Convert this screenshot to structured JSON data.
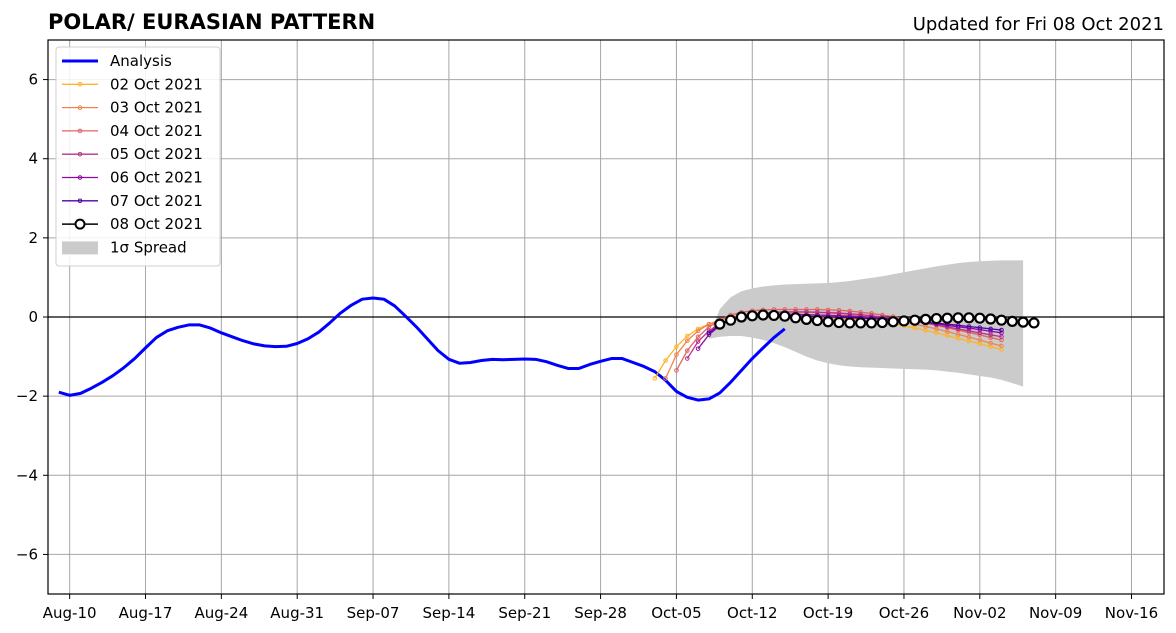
{
  "chart_data": {
    "type": "line",
    "title": "POLAR/ EURASIAN  PATTERN",
    "subtitle": "Updated for Fri 08 Oct 2021",
    "xlabel": "",
    "ylabel": "",
    "x_range": [
      "2021-08-08",
      "2021-11-19"
    ],
    "ylim": [
      -7,
      7
    ],
    "grid": true,
    "legend_position": "top-left",
    "x_ticks": [
      {
        "date": "2021-08-10",
        "label": "Aug-10"
      },
      {
        "date": "2021-08-17",
        "label": "Aug-17"
      },
      {
        "date": "2021-08-24",
        "label": "Aug-24"
      },
      {
        "date": "2021-08-31",
        "label": "Aug-31"
      },
      {
        "date": "2021-09-07",
        "label": "Sep-07"
      },
      {
        "date": "2021-09-14",
        "label": "Sep-14"
      },
      {
        "date": "2021-09-21",
        "label": "Sep-21"
      },
      {
        "date": "2021-09-28",
        "label": "Sep-28"
      },
      {
        "date": "2021-10-05",
        "label": "Oct-05"
      },
      {
        "date": "2021-10-12",
        "label": "Oct-12"
      },
      {
        "date": "2021-10-19",
        "label": "Oct-19"
      },
      {
        "date": "2021-10-26",
        "label": "Oct-26"
      },
      {
        "date": "2021-11-02",
        "label": "Nov-02"
      },
      {
        "date": "2021-11-09",
        "label": "Nov-09"
      },
      {
        "date": "2021-11-16",
        "label": "Nov-16"
      }
    ],
    "y_ticks": [
      {
        "value": 6,
        "label": "6"
      },
      {
        "value": 4,
        "label": "4"
      },
      {
        "value": 2,
        "label": "2"
      },
      {
        "value": 0,
        "label": "0"
      },
      {
        "value": -2,
        "label": "−2"
      },
      {
        "value": -4,
        "label": "−4"
      },
      {
        "value": -6,
        "label": "−6"
      }
    ],
    "zero_line": true,
    "series": [
      {
        "name": "Analysis",
        "color": "#0000ff",
        "style": "thick-line",
        "start_date": "2021-08-09",
        "values": [
          -1.9,
          -1.98,
          -1.93,
          -1.8,
          -1.65,
          -1.48,
          -1.28,
          -1.05,
          -0.78,
          -0.52,
          -0.35,
          -0.26,
          -0.2,
          -0.2,
          -0.28,
          -0.4,
          -0.5,
          -0.6,
          -0.68,
          -0.73,
          -0.75,
          -0.74,
          -0.67,
          -0.55,
          -0.38,
          -0.15,
          0.1,
          0.3,
          0.45,
          0.48,
          0.45,
          0.28,
          0.02,
          -0.25,
          -0.55,
          -0.85,
          -1.07,
          -1.17,
          -1.15,
          -1.1,
          -1.07,
          -1.08,
          -1.07,
          -1.06,
          -1.07,
          -1.13,
          -1.22,
          -1.3,
          -1.3,
          -1.2,
          -1.12,
          -1.05,
          -1.05,
          -1.15,
          -1.25,
          -1.38,
          -1.6,
          -1.88,
          -2.03,
          -2.1,
          -2.07,
          -1.92,
          -1.65,
          -1.35,
          -1.05,
          -0.78,
          -0.52,
          -0.3
        ]
      },
      {
        "name": "02 Oct 2021",
        "color": "#fcb52b",
        "style": "thin-line-small-markers",
        "start_date": "2021-10-03",
        "values": [
          -1.55,
          -1.1,
          -0.75,
          -0.48,
          -0.3,
          -0.18,
          -0.1,
          -0.05,
          -0.02,
          0.0,
          0.01,
          0.01,
          0.01,
          0.0,
          0.0,
          -0.01,
          -0.02,
          -0.03,
          -0.05,
          -0.07,
          -0.1,
          -0.13,
          -0.17,
          -0.22,
          -0.28,
          -0.34,
          -0.4,
          -0.47,
          -0.54,
          -0.61,
          -0.68,
          -0.75,
          -0.82
        ]
      },
      {
        "name": "03 Oct 2021",
        "color": "#f1844b",
        "style": "thin-line-small-markers",
        "start_date": "2021-10-04",
        "values": [
          -1.55,
          -0.95,
          -0.6,
          -0.35,
          -0.18,
          -0.08,
          0.0,
          0.05,
          0.08,
          0.1,
          0.11,
          0.12,
          0.12,
          0.12,
          0.11,
          0.1,
          0.08,
          0.06,
          0.03,
          0.0,
          -0.04,
          -0.08,
          -0.13,
          -0.18,
          -0.24,
          -0.3,
          -0.37,
          -0.44,
          -0.51,
          -0.58,
          -0.66,
          -0.73
        ]
      },
      {
        "name": "04 Oct 2021",
        "color": "#e16462",
        "style": "thin-line-small-markers",
        "start_date": "2021-10-05",
        "values": [
          -1.35,
          -0.85,
          -0.5,
          -0.25,
          -0.08,
          0.05,
          0.12,
          0.16,
          0.18,
          0.19,
          0.19,
          0.19,
          0.19,
          0.19,
          0.18,
          0.17,
          0.15,
          0.12,
          0.09,
          0.05,
          0.01,
          -0.04,
          -0.09,
          -0.15,
          -0.21,
          -0.27,
          -0.33,
          -0.39,
          -0.45,
          -0.52,
          -0.58
        ]
      },
      {
        "name": "05 Oct 2021",
        "color": "#b83289",
        "style": "thin-line-small-markers",
        "start_date": "2021-10-06",
        "values": [
          -1.05,
          -0.62,
          -0.35,
          -0.17,
          -0.05,
          0.02,
          0.07,
          0.1,
          0.12,
          0.13,
          0.13,
          0.13,
          0.12,
          0.11,
          0.1,
          0.08,
          0.06,
          0.03,
          0.0,
          -0.03,
          -0.07,
          -0.11,
          -0.15,
          -0.2,
          -0.25,
          -0.3,
          -0.35,
          -0.4,
          -0.45,
          -0.5
        ]
      },
      {
        "name": "06 Oct 2021",
        "color": "#8b0aa5",
        "style": "thin-line-small-markers",
        "start_date": "2021-10-07",
        "values": [
          -0.8,
          -0.45,
          -0.22,
          -0.08,
          0.0,
          0.04,
          0.06,
          0.07,
          0.07,
          0.07,
          0.06,
          0.05,
          0.04,
          0.03,
          0.02,
          0.01,
          -0.01,
          -0.03,
          -0.05,
          -0.08,
          -0.11,
          -0.14,
          -0.17,
          -0.21,
          -0.25,
          -0.28,
          -0.32,
          -0.36,
          -0.4
        ]
      },
      {
        "name": "07 Oct 2021",
        "color": "#5302a3",
        "style": "thin-line-small-markers",
        "start_date": "2021-10-08",
        "values": [
          -0.4,
          -0.2,
          -0.07,
          0.0,
          0.03,
          0.04,
          0.04,
          0.04,
          0.03,
          0.02,
          0.01,
          0.0,
          -0.01,
          -0.02,
          -0.03,
          -0.04,
          -0.05,
          -0.07,
          -0.09,
          -0.11,
          -0.13,
          -0.16,
          -0.18,
          -0.21,
          -0.24,
          -0.27,
          -0.3,
          -0.33
        ]
      },
      {
        "name": "08 Oct 2021",
        "color": "#000000",
        "style": "thin-line-open-circles",
        "start_date": "2021-10-09",
        "values": [
          -0.18,
          -0.08,
          0.0,
          0.03,
          0.05,
          0.04,
          0.02,
          -0.02,
          -0.06,
          -0.09,
          -0.12,
          -0.14,
          -0.15,
          -0.15,
          -0.15,
          -0.14,
          -0.12,
          -0.1,
          -0.08,
          -0.06,
          -0.04,
          -0.03,
          -0.02,
          -0.02,
          -0.03,
          -0.05,
          -0.08,
          -0.11,
          -0.13,
          -0.15
        ]
      }
    ],
    "spread": {
      "name": "1σ Spread",
      "color": "#cbcbcb",
      "start_date": "2021-10-08",
      "upper": [
        -0.5,
        0.2,
        0.5,
        0.65,
        0.72,
        0.77,
        0.8,
        0.82,
        0.83,
        0.84,
        0.85,
        0.86,
        0.88,
        0.91,
        0.95,
        0.99,
        1.03,
        1.08,
        1.13,
        1.18,
        1.23,
        1.28,
        1.32,
        1.36,
        1.39,
        1.41,
        1.42,
        1.43,
        1.43,
        1.43
      ],
      "lower": [
        -0.55,
        -0.5,
        -0.48,
        -0.48,
        -0.52,
        -0.58,
        -0.66,
        -0.76,
        -0.88,
        -1.0,
        -1.1,
        -1.17,
        -1.22,
        -1.25,
        -1.27,
        -1.28,
        -1.29,
        -1.3,
        -1.31,
        -1.32,
        -1.33,
        -1.35,
        -1.38,
        -1.41,
        -1.45,
        -1.49,
        -1.53,
        -1.59,
        -1.67,
        -1.76
      ]
    }
  }
}
